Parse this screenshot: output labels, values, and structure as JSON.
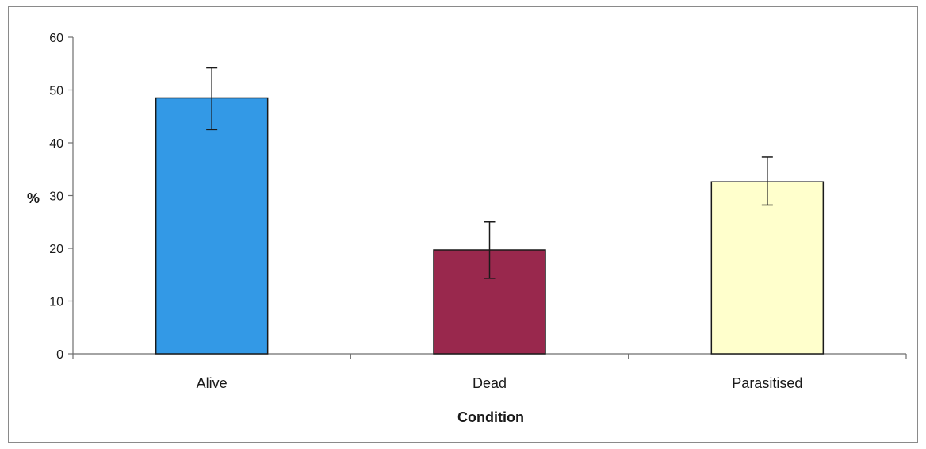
{
  "chart_data": {
    "type": "bar",
    "categories": [
      "Alive",
      "Dead",
      "Parasitised"
    ],
    "values": [
      48.5,
      19.7,
      32.6
    ],
    "error_bars": [
      {
        "low": 42.5,
        "high": 54.2
      },
      {
        "low": 14.3,
        "high": 25.0
      },
      {
        "low": 28.2,
        "high": 37.3
      }
    ],
    "colors": [
      "#3399e6",
      "#99284d",
      "#ffffcc"
    ],
    "title": "",
    "xlabel": "Condition",
    "ylabel": "%",
    "ylim": [
      0,
      60
    ],
    "yticks": [
      "0",
      "10",
      "20",
      "30",
      "40",
      "50",
      "60"
    ],
    "grid": false,
    "legend": "none"
  }
}
